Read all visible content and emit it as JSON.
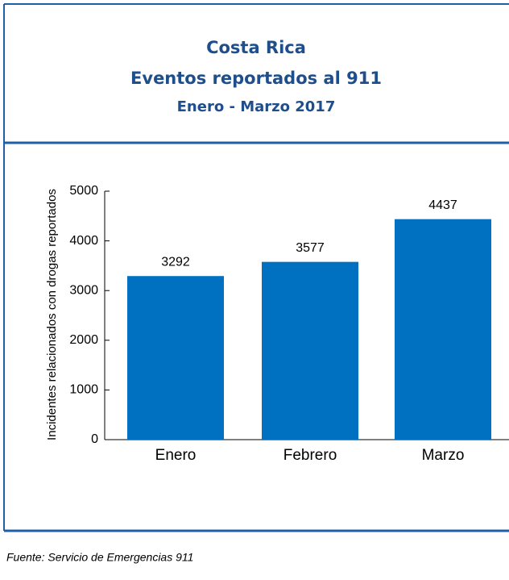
{
  "chart_data": {
    "type": "bar",
    "title_lines": [
      "Costa Rica",
      "Eventos reportados al 911",
      "Enero - Marzo 2017"
    ],
    "y_label": "Incidentes relacionados con drogas reportados",
    "categories": [
      "Enero",
      "Febrero",
      "Marzo"
    ],
    "values": [
      3292,
      3577,
      4437
    ],
    "color": "#0070c0",
    "ylim": [
      0,
      5000
    ],
    "yticks": [
      0,
      1000,
      2000,
      3000,
      4000,
      5000
    ],
    "grid": false,
    "source": "Fuente: Servicio de Emergencias 911"
  }
}
